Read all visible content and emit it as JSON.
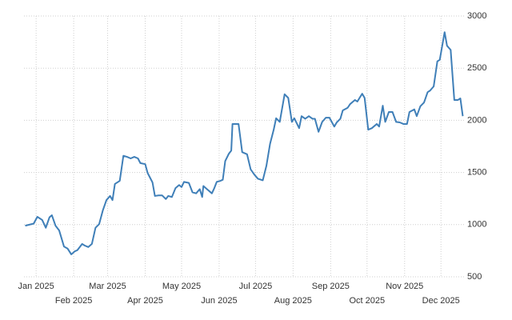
{
  "chart_data": {
    "type": "line",
    "color": "#3f7fb8",
    "grid": true,
    "x": [
      -9,
      -2,
      1,
      5,
      8,
      11,
      13,
      16,
      19,
      23,
      26,
      29,
      32,
      34,
      38,
      40,
      43,
      46,
      49,
      52,
      55,
      58,
      61,
      63,
      65,
      69,
      72,
      75,
      78,
      81,
      84,
      86,
      90,
      92,
      96,
      98,
      101,
      104,
      107,
      109,
      112,
      115,
      118,
      120,
      122,
      126,
      129,
      132,
      135,
      137,
      138,
      141,
      145,
      147,
      149,
      152,
      154,
      156,
      159,
      161,
      162,
      167,
      170,
      174,
      177,
      180,
      183,
      187,
      190,
      193,
      196,
      198,
      201,
      205,
      208,
      211,
      213,
      217,
      219,
      222,
      225,
      228,
      230,
      233,
      236,
      239,
      242,
      246,
      248,
      251,
      253,
      257,
      259,
      263,
      265,
      269,
      271,
      274,
      277,
      281,
      283,
      286,
      288,
      291,
      294,
      297,
      300,
      303,
      306,
      308,
      312,
      314,
      317,
      320,
      323,
      325,
      328,
      331,
      333,
      337,
      339,
      342,
      345,
      348,
      350,
      352
    ],
    "values": [
      990,
      1010,
      1075,
      1045,
      970,
      1070,
      1090,
      990,
      945,
      790,
      770,
      715,
      745,
      755,
      815,
      800,
      785,
      815,
      970,
      1005,
      1135,
      1235,
      1275,
      1235,
      1390,
      1420,
      1660,
      1650,
      1635,
      1650,
      1635,
      1590,
      1580,
      1495,
      1405,
      1275,
      1280,
      1280,
      1245,
      1275,
      1265,
      1350,
      1380,
      1360,
      1410,
      1400,
      1310,
      1300,
      1340,
      1265,
      1370,
      1340,
      1300,
      1350,
      1410,
      1420,
      1430,
      1610,
      1680,
      1710,
      1965,
      1965,
      1695,
      1675,
      1530,
      1480,
      1440,
      1425,
      1565,
      1775,
      1910,
      2020,
      1985,
      2250,
      2215,
      1985,
      2020,
      1925,
      2040,
      2015,
      2040,
      2015,
      2015,
      1890,
      1985,
      2025,
      2025,
      1940,
      1980,
      2015,
      2095,
      2120,
      2155,
      2195,
      2180,
      2255,
      2215,
      1910,
      1925,
      1965,
      1940,
      2140,
      1985,
      2080,
      2080,
      1985,
      1980,
      1965,
      1965,
      2080,
      2105,
      2040,
      2135,
      2170,
      2270,
      2285,
      2325,
      2565,
      2580,
      2845,
      2715,
      2675,
      2195,
      2195,
      2210,
      2040
    ],
    "xlim": [
      -10,
      353
    ],
    "xticks": [
      {
        "value": 0,
        "label": "Jan 2025"
      },
      {
        "value": 31,
        "label": "Feb 2025"
      },
      {
        "value": 59,
        "label": "Mar 2025"
      },
      {
        "value": 90,
        "label": "Apr 2025"
      },
      {
        "value": 120,
        "label": "May 2025"
      },
      {
        "value": 151,
        "label": "Jun 2025"
      },
      {
        "value": 181,
        "label": "Jul 2025"
      },
      {
        "value": 212,
        "label": "Aug 2025"
      },
      {
        "value": 243,
        "label": "Sep 2025"
      },
      {
        "value": 273,
        "label": "Oct 2025"
      },
      {
        "value": 304,
        "label": "Nov 2025"
      },
      {
        "value": 334,
        "label": "Dec 2025"
      }
    ],
    "ylim": [
      500,
      3000
    ],
    "yticks": [
      500,
      1000,
      1500,
      2000,
      2500,
      3000
    ]
  }
}
